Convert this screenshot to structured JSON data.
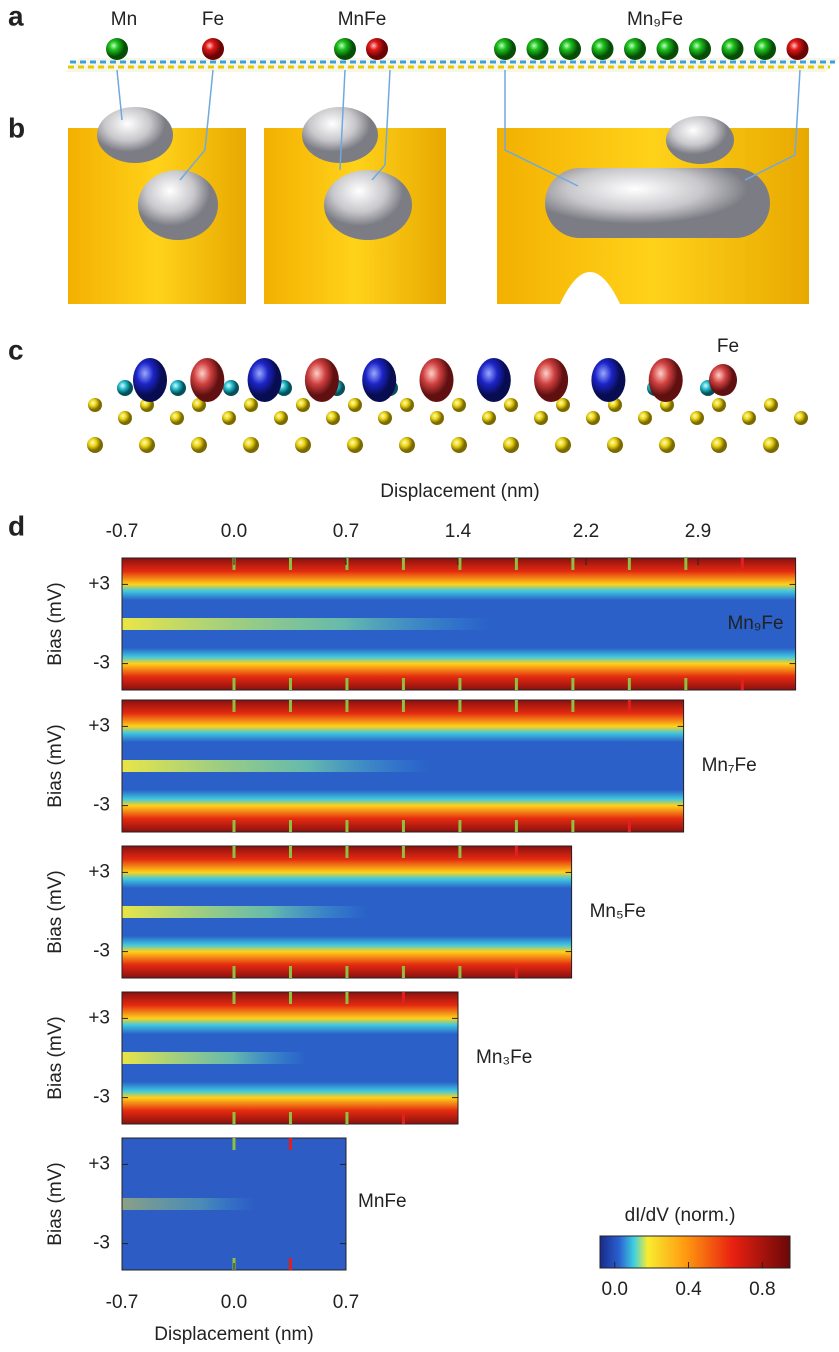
{
  "panel_labels": [
    "a",
    "b",
    "c",
    "d"
  ],
  "panel_a": {
    "labels": [
      "Mn",
      "Fe",
      "MnFe",
      "Mn₉Fe"
    ]
  },
  "panel_c": {
    "label": "Fe"
  },
  "panel_d": {
    "x_label": "Displacement (nm)",
    "xticks_top": [
      -0.7,
      {
        "value": 0,
        "label": "0.0"
      },
      0.7,
      1.4,
      2.2,
      2.9
    ],
    "xticks_bottom": [
      -0.7,
      {
        "value": 0,
        "label": "0.0"
      },
      0.7
    ],
    "y_label": "Bias (mV)",
    "ylim": [
      -5,
      5
    ],
    "yticks": [
      {
        "value": 3,
        "label": "+3"
      },
      -3
    ],
    "maps": [
      {
        "label": "Mn₉Fe",
        "xlim": [
          -0.7,
          3.51
        ]
      },
      {
        "label": "Mn₇Fe",
        "xlim": [
          -0.7,
          2.81
        ]
      },
      {
        "label": "Mn₅Fe",
        "xlim": [
          -0.7,
          2.11
        ]
      },
      {
        "label": "Mn₃Fe",
        "xlim": [
          -0.7,
          1.4
        ]
      },
      {
        "label": "MnFe",
        "xlim": [
          -0.7,
          0.7
        ]
      }
    ],
    "colorbar": {
      "title": "dI/dV (norm.)",
      "lim": [
        -0.08,
        0.95
      ],
      "ticks": [
        {
          "value": 0,
          "label": "0.0"
        },
        0.4,
        0.8
      ]
    }
  }
}
